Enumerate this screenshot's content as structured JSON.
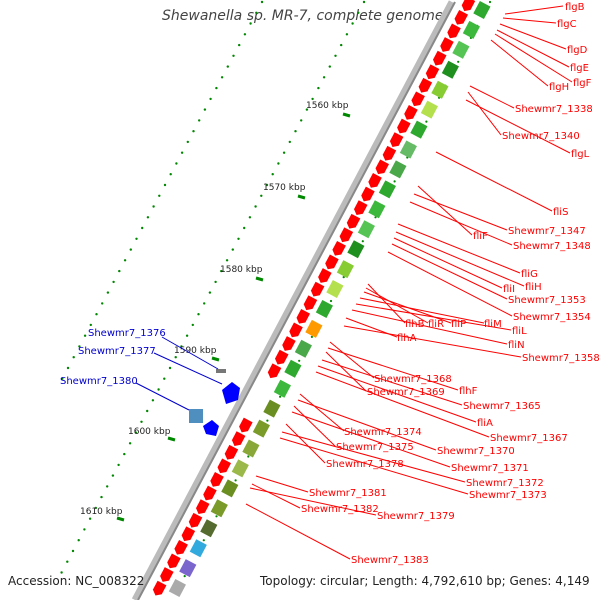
{
  "title": "Shewanella sp. MR-7, complete genome",
  "accession": "Accession: NC_008322",
  "topology": "Topology: circular; Length: 4,792,610 bp; Genes: 4,149",
  "colors": {
    "gene_red": "#ff0000",
    "label_red": "#ff0000",
    "label_blue": "#0000cc",
    "gene_blue": "#0000ff",
    "tick_green": "#008800"
  },
  "kbp_ticks": [
    "1560 kbp",
    "1570 kbp",
    "1580 kbp",
    "1590 kbp",
    "1600 kbp",
    "1610 kbp"
  ],
  "blue_labels": [
    "Shewmr7_1376",
    "Shewmr7_1377",
    "Shewmr7_1380"
  ],
  "red_labels": [
    "flgB",
    "flgC",
    "flgD",
    "flgE",
    "flgF",
    "flgH",
    "Shewmr7_1338",
    "Shewmr7_1340",
    "flgL",
    "fliS",
    "fliF",
    "Shewmr7_1347",
    "Shewmr7_1348",
    "fliG",
    "fliH",
    "fliI",
    "Shewmr7_1353",
    "Shewmr7_1354",
    "flhB",
    "fliR",
    "fliP",
    "fliM",
    "fliL",
    "fliN",
    "flhA",
    "Shewmr7_1358",
    "Shewmr7_1368",
    "flhF",
    "Shewmr7_1369",
    "Shewmr7_1365",
    "fliA",
    "Shewmr7_1367",
    "Shewmr7_1374",
    "Shewmr7_1370",
    "Shewmr7_1375",
    "Shewmr7_1371",
    "Shewmr7_1378",
    "Shewmr7_1372",
    "Shewmr7_1373",
    "Shewmr7_1381",
    "Shewmr7_1382",
    "Shewmr7_1379",
    "Shewmr7_1383"
  ]
}
